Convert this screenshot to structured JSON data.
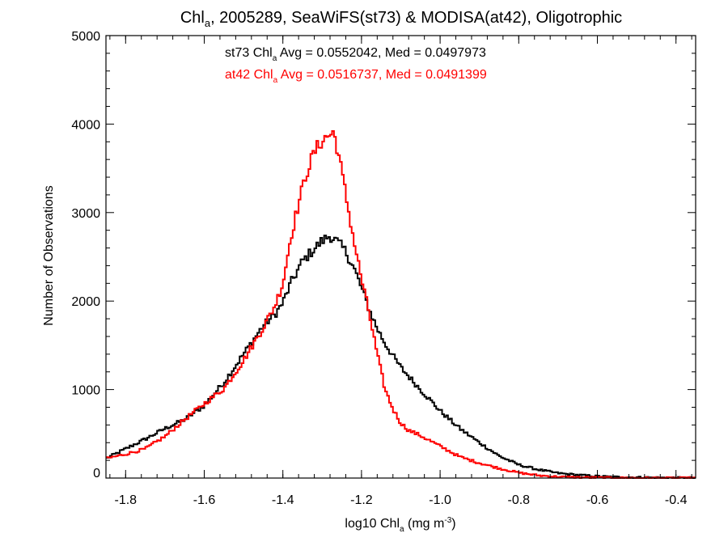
{
  "chart_data": {
    "type": "line",
    "title_parts": [
      "Chl",
      "a",
      ", 2005289, SeaWiFS(st73) & MODISA(at42), Oligotrophic"
    ],
    "xlabel_parts": [
      "log10 Chl",
      "a",
      " (mg m",
      "-3",
      ")"
    ],
    "ylabel": "Number of Observations",
    "xlim": [
      -1.85,
      -0.35
    ],
    "ylim": [
      0,
      5000
    ],
    "x_ticks": [
      -1.8,
      -1.6,
      -1.4,
      -1.2,
      -1.0,
      -0.8,
      -0.6,
      -0.4
    ],
    "x_tick_labels": [
      "-1.8",
      "-1.6",
      "-1.4",
      "-1.2",
      "-1.0",
      "-0.8",
      "-0.6",
      "-0.4"
    ],
    "y_ticks": [
      0,
      1000,
      2000,
      3000,
      4000,
      5000
    ],
    "y_tick_labels": [
      "0",
      "1000",
      "2000",
      "3000",
      "4000",
      "5000"
    ],
    "x_minor_step": 0.04,
    "y_minor_step": 200,
    "grid": false,
    "step_style": "histogram",
    "annotations": [
      {
        "color": "#000000",
        "parts": [
          "st73 Chl",
          "a",
          " Avg = 0.0552042, Med = 0.0497973"
        ]
      },
      {
        "color": "#ff0000",
        "parts": [
          "at42 Chl",
          "a",
          " Avg = 0.0516737, Med = 0.0491399"
        ]
      }
    ],
    "series": [
      {
        "color": "#000000",
        "x": [
          -1.85,
          -1.8,
          -1.75,
          -1.7,
          -1.65,
          -1.6,
          -1.55,
          -1.5,
          -1.45,
          -1.42,
          -1.4,
          -1.38,
          -1.35,
          -1.32,
          -1.3,
          -1.28,
          -1.26,
          -1.24,
          -1.22,
          -1.2,
          -1.18,
          -1.16,
          -1.14,
          -1.12,
          -1.1,
          -1.05,
          -1.0,
          -0.95,
          -0.9,
          -0.85,
          -0.8,
          -0.75,
          -0.7,
          -0.65,
          -0.6,
          -0.55,
          -0.5,
          -0.45,
          -0.4,
          -0.35
        ],
        "y": [
          220,
          330,
          440,
          560,
          660,
          820,
          1080,
          1400,
          1720,
          1850,
          1980,
          2200,
          2450,
          2590,
          2680,
          2740,
          2660,
          2560,
          2380,
          2150,
          1900,
          1690,
          1520,
          1380,
          1250,
          1000,
          760,
          560,
          400,
          250,
          150,
          95,
          55,
          35,
          20,
          12,
          8,
          5,
          3,
          2
        ]
      },
      {
        "color": "#ff0000",
        "x": [
          -1.85,
          -1.8,
          -1.75,
          -1.7,
          -1.65,
          -1.6,
          -1.55,
          -1.5,
          -1.45,
          -1.42,
          -1.4,
          -1.38,
          -1.36,
          -1.34,
          -1.32,
          -1.3,
          -1.28,
          -1.27,
          -1.26,
          -1.24,
          -1.22,
          -1.2,
          -1.18,
          -1.16,
          -1.14,
          -1.12,
          -1.1,
          -1.08,
          -1.05,
          -1.0,
          -0.95,
          -0.9,
          -0.85,
          -0.8,
          -0.75,
          -0.7,
          -0.65,
          -0.6,
          -0.55,
          -0.5,
          -0.45,
          -0.4,
          -0.35
        ],
        "y": [
          220,
          270,
          330,
          470,
          660,
          840,
          1010,
          1330,
          1700,
          1950,
          2200,
          2720,
          3100,
          3450,
          3680,
          3820,
          3880,
          3900,
          3700,
          3200,
          2700,
          2250,
          1850,
          1400,
          1000,
          780,
          620,
          540,
          480,
          360,
          240,
          170,
          110,
          60,
          30,
          15,
          8,
          5,
          3,
          2,
          1,
          1,
          1
        ]
      }
    ]
  }
}
